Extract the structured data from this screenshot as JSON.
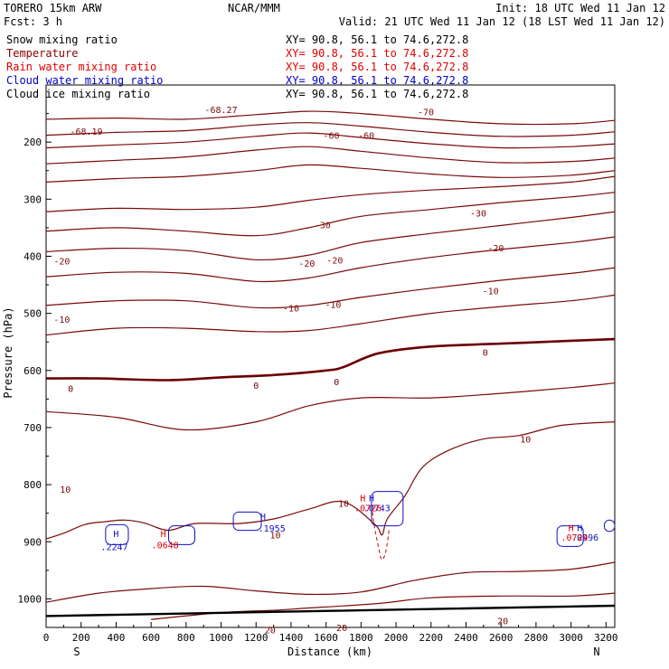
{
  "header": {
    "model": "TORERO  15km ARW",
    "org": "NCAR/MMM",
    "init": "Init: 18 UTC Wed 11 Jan 12",
    "fcst": "Fcst:    3 h",
    "valid": "Valid: 21 UTC Wed 11 Jan 12 (18 LST Wed 11 Jan 12)"
  },
  "legend": [
    {
      "name": "Snow mixing ratio",
      "xy": "XY=  90.8, 56.1  to  74.6,272.8",
      "color": "#000000"
    },
    {
      "name": "Temperature",
      "xy": "XY=  90.8, 56.1  to  74.6,272.8",
      "color": "#8b0000"
    },
    {
      "name": "Rain water mixing ratio",
      "xy": "XY=  90.8, 56.1  to  74.6,272.8",
      "color": "#e00000"
    },
    {
      "name": "Cloud water mixing ratio",
      "xy": "XY=  90.8, 56.1  to  74.6,272.8",
      "color": "#0000cc"
    },
    {
      "name": "Cloud ice mixing ratio",
      "xy": "XY=  90.8, 56.1  to  74.6,272.8",
      "color": "#000000"
    }
  ],
  "chart_data": {
    "type": "line",
    "xlabel": "Distance (km)",
    "ylabel": "Pressure (hPa)",
    "xlim": [
      0,
      3250
    ],
    "ylim": [
      100,
      1050
    ],
    "x_ticks": [
      0,
      200,
      400,
      600,
      800,
      1000,
      1200,
      1400,
      1600,
      1800,
      2000,
      2200,
      2400,
      2600,
      2800,
      3000,
      3200
    ],
    "y_ticks": [
      200,
      300,
      400,
      500,
      600,
      700,
      800,
      900,
      1000
    ],
    "x_end_labels": {
      "left": "S",
      "right": "N"
    },
    "colors": {
      "temperature": "#7a0a0a",
      "zero": "#6b0000",
      "rain": "#e00000",
      "cloud": "#1010c0",
      "ground": "#000000"
    },
    "temperature_isotherms": [
      {
        "x": [
          0,
          400,
          800,
          1200,
          1500,
          1800,
          2200,
          2600,
          3000,
          3250
        ],
        "y": [
          160,
          158,
          160,
          152,
          146,
          150,
          160,
          168,
          168,
          162
        ]
      },
      {
        "x": [
          0,
          400,
          800,
          1200,
          1500,
          1800,
          2200,
          2600,
          3000,
          3250
        ],
        "y": [
          188,
          183,
          180,
          170,
          166,
          172,
          183,
          190,
          188,
          182
        ]
      },
      {
        "x": [
          0,
          400,
          800,
          1200,
          1500,
          1800,
          2200,
          2600,
          3000,
          3250
        ],
        "y": [
          210,
          205,
          200,
          190,
          184,
          192,
          203,
          210,
          208,
          203
        ]
      },
      {
        "x": [
          0,
          400,
          800,
          1200,
          1500,
          1800,
          2200,
          2600,
          3000,
          3250
        ],
        "y": [
          238,
          232,
          226,
          214,
          208,
          216,
          228,
          236,
          234,
          228
        ]
      },
      {
        "x": [
          0,
          400,
          800,
          1200,
          1500,
          1800,
          2200,
          2600,
          3000,
          3250
        ],
        "y": [
          270,
          264,
          260,
          250,
          240,
          246,
          256,
          262,
          258,
          250
        ]
      },
      {
        "x": [
          0,
          400,
          800,
          1200,
          1500,
          1800,
          2200,
          2600,
          3000,
          3250
        ],
        "y": [
          322,
          316,
          318,
          314,
          302,
          292,
          284,
          278,
          270,
          260
        ]
      },
      {
        "x": [
          0,
          400,
          800,
          1200,
          1500,
          1800,
          2200,
          2600,
          3000,
          3250
        ],
        "y": [
          356,
          350,
          356,
          364,
          350,
          330,
          318,
          306,
          296,
          288
        ]
      },
      {
        "x": [
          0,
          400,
          800,
          1200,
          1500,
          1800,
          2200,
          2600,
          3000,
          3250
        ],
        "y": [
          392,
          386,
          390,
          406,
          398,
          376,
          360,
          346,
          332,
          322
        ]
      },
      {
        "x": [
          0,
          400,
          800,
          1200,
          1500,
          1800,
          2200,
          2600,
          3000,
          3250
        ],
        "y": [
          436,
          428,
          430,
          444,
          438,
          420,
          402,
          388,
          376,
          366
        ]
      },
      {
        "x": [
          0,
          400,
          800,
          1200,
          1500,
          1800,
          2200,
          2600,
          3000,
          3250
        ],
        "y": [
          486,
          478,
          478,
          490,
          486,
          472,
          456,
          442,
          430,
          420
        ]
      },
      {
        "x": [
          0,
          400,
          800,
          1200,
          1500,
          1800,
          2200,
          2600,
          3000,
          3250
        ],
        "y": [
          538,
          526,
          526,
          532,
          530,
          518,
          500,
          488,
          478,
          468
        ]
      }
    ],
    "zero_isotherm": {
      "x": [
        0,
        300,
        700,
        1000,
        1300,
        1600,
        1700,
        1900,
        2200,
        2600,
        3000,
        3250
      ],
      "y": [
        614,
        614,
        617,
        612,
        608,
        600,
        594,
        570,
        558,
        553,
        548,
        545
      ]
    },
    "warm_isotherms": [
      {
        "x": [
          0,
          400,
          800,
          1200,
          1500,
          1800,
          2200,
          2600,
          3000,
          3250
        ],
        "y": [
          672,
          682,
          704,
          690,
          662,
          648,
          648,
          640,
          630,
          622
        ]
      },
      {
        "x": [
          0,
          100,
          220,
          330,
          450,
          560,
          700,
          850,
          1100,
          1300,
          1500,
          1700,
          1880,
          1920,
          1950,
          2050,
          2150,
          2300,
          2500,
          2700,
          2950,
          3250
        ],
        "y": [
          895,
          885,
          870,
          865,
          862,
          867,
          880,
          868,
          868,
          860,
          843,
          830,
          870,
          888,
          860,
          820,
          770,
          740,
          720,
          714,
          696,
          690
        ]
      },
      {
        "x": [
          0,
          300,
          600,
          900,
          1200,
          1500,
          1800,
          2100,
          2400,
          2700,
          3000,
          3250
        ],
        "y": [
          1006,
          990,
          982,
          978,
          986,
          992,
          988,
          968,
          954,
          952,
          948,
          936
        ]
      },
      {
        "x": [
          600,
          1000,
          1300,
          1500,
          1900,
          2200,
          2600,
          3000,
          3250
        ],
        "y": [
          1036,
          1024,
          1020,
          1016,
          1008,
          998,
          995,
          995,
          990
        ]
      }
    ],
    "ground": {
      "x": [
        0,
        3250
      ],
      "y": [
        1030,
        1012
      ]
    },
    "contour_labels": [
      {
        "text": "-68.27",
        "x": 1000,
        "y": 143,
        "color": "#7a0a0a"
      },
      {
        "text": "-68.19",
        "x": 230,
        "y": 181,
        "color": "#7a0a0a"
      },
      {
        "text": "-70",
        "x": 2170,
        "y": 147,
        "color": "#7a0a0a"
      },
      {
        "text": "-60",
        "x": 1630,
        "y": 188,
        "color": "#7a0a0a"
      },
      {
        "text": "-60",
        "x": 1830,
        "y": 188,
        "color": "#7a0a0a"
      },
      {
        "text": "-30",
        "x": 1580,
        "y": 345,
        "color": "#7a0a0a"
      },
      {
        "text": "-30",
        "x": 2470,
        "y": 324,
        "color": "#7a0a0a"
      },
      {
        "text": "-20",
        "x": 90,
        "y": 408,
        "color": "#7a0a0a"
      },
      {
        "text": "-20",
        "x": 1490,
        "y": 412,
        "color": "#7a0a0a"
      },
      {
        "text": "-20",
        "x": 1650,
        "y": 406,
        "color": "#7a0a0a"
      },
      {
        "text": "-20",
        "x": 2570,
        "y": 385,
        "color": "#7a0a0a"
      },
      {
        "text": "-10",
        "x": 1400,
        "y": 490,
        "color": "#7a0a0a"
      },
      {
        "text": "-10",
        "x": 1640,
        "y": 484,
        "color": "#7a0a0a"
      },
      {
        "text": "-10",
        "x": 2540,
        "y": 460,
        "color": "#7a0a0a"
      },
      {
        "text": "-10",
        "x": 90,
        "y": 510,
        "color": "#7a0a0a"
      },
      {
        "text": "0",
        "x": 140,
        "y": 631,
        "color": "#6b0000"
      },
      {
        "text": "0",
        "x": 1200,
        "y": 626,
        "color": "#6b0000"
      },
      {
        "text": "0",
        "x": 1660,
        "y": 619,
        "color": "#6b0000"
      },
      {
        "text": "0",
        "x": 2510,
        "y": 568,
        "color": "#6b0000"
      },
      {
        "text": "10",
        "x": 110,
        "y": 808,
        "color": "#7a0a0a"
      },
      {
        "text": "10",
        "x": 1700,
        "y": 832,
        "color": "#7a0a0a"
      },
      {
        "text": "10",
        "x": 1310,
        "y": 888,
        "color": "#7a0a0a"
      },
      {
        "text": "10",
        "x": 2740,
        "y": 720,
        "color": "#7a0a0a"
      },
      {
        "text": "20",
        "x": 1280,
        "y": 1054,
        "color": "#7a0a0a"
      },
      {
        "text": "20",
        "x": 1690,
        "y": 1050,
        "color": "#7a0a0a"
      },
      {
        "text": "20",
        "x": 2610,
        "y": 1038,
        "color": "#7a0a0a"
      }
    ],
    "rain_outline": {
      "x": [
        1865,
        1880,
        1900,
        1915,
        1930,
        1945,
        1960
      ],
      "y": [
        848,
        880,
        910,
        930,
        928,
        912,
        880
      ]
    },
    "cloud_markers": [
      {
        "text": "H",
        "x": 400,
        "y": 885,
        "color": "#1010c0"
      },
      {
        "text": ".2247",
        "x": 390,
        "y": 908,
        "color": "#1010c0"
      },
      {
        "text": "H",
        "x": 1240,
        "y": 855,
        "color": "#1010c0"
      },
      {
        "text": ".1955",
        "x": 1290,
        "y": 876,
        "color": "#1010c0"
      },
      {
        "text": "H",
        "x": 1860,
        "y": 823,
        "color": "#1010c0"
      },
      {
        "text": ".0743",
        "x": 1890,
        "y": 840,
        "color": "#1010c0"
      },
      {
        "text": "H",
        "x": 3050,
        "y": 875,
        "color": "#1010c0"
      },
      {
        "text": ".0996",
        "x": 3080,
        "y": 892,
        "color": "#1010c0"
      }
    ],
    "rain_markers": [
      {
        "text": "H",
        "x": 670,
        "y": 885,
        "color": "#e00000"
      },
      {
        "text": ".0648",
        "x": 680,
        "y": 905,
        "color": "#e00000"
      },
      {
        "text": "H",
        "x": 1810,
        "y": 823,
        "color": "#e00000"
      },
      {
        "text": ".0726",
        "x": 1840,
        "y": 840,
        "color": "#e00000"
      },
      {
        "text": "H",
        "x": 3000,
        "y": 875,
        "color": "#e00000"
      },
      {
        "text": ".0724",
        "x": 3020,
        "y": 892,
        "color": "#e00000"
      }
    ]
  }
}
